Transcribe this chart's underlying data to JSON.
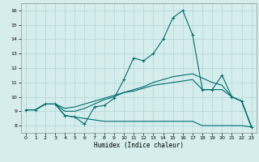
{
  "xlabel": "Humidex (Indice chaleur)",
  "background_color": "#d5eeed",
  "grid_color": "#b8d8d8",
  "line_color": "#006e6e",
  "xlim": [
    -0.5,
    23.5
  ],
  "ylim": [
    7.5,
    16.5
  ],
  "xticks": [
    0,
    1,
    2,
    3,
    4,
    5,
    6,
    7,
    8,
    9,
    10,
    11,
    12,
    13,
    14,
    15,
    16,
    17,
    18,
    19,
    20,
    21,
    22,
    23
  ],
  "yticks": [
    8,
    9,
    10,
    11,
    12,
    13,
    14,
    15,
    16
  ],
  "series": [
    [
      9.1,
      9.1,
      9.5,
      9.5,
      8.7,
      8.6,
      8.1,
      9.3,
      9.4,
      9.9,
      11.2,
      12.7,
      12.5,
      13.0,
      14.0,
      15.5,
      16.0,
      14.3,
      10.5,
      10.5,
      11.5,
      10.0,
      9.7,
      7.9
    ],
    [
      9.1,
      9.1,
      9.5,
      9.5,
      8.7,
      8.6,
      8.5,
      8.4,
      8.3,
      8.3,
      8.3,
      8.3,
      8.3,
      8.3,
      8.3,
      8.3,
      8.3,
      8.3,
      8.0,
      8.0,
      8.0,
      8.0,
      8.0,
      7.9
    ],
    [
      9.1,
      9.1,
      9.5,
      9.5,
      9.0,
      9.0,
      9.2,
      9.5,
      9.8,
      10.0,
      10.3,
      10.4,
      10.6,
      10.8,
      10.9,
      11.0,
      11.1,
      11.2,
      10.5,
      10.5,
      10.5,
      10.0,
      9.7,
      7.9
    ],
    [
      9.1,
      9.1,
      9.5,
      9.5,
      9.2,
      9.3,
      9.5,
      9.7,
      9.9,
      10.1,
      10.3,
      10.5,
      10.7,
      11.0,
      11.2,
      11.4,
      11.5,
      11.6,
      11.3,
      11.0,
      10.8,
      10.0,
      9.7,
      7.9
    ]
  ]
}
